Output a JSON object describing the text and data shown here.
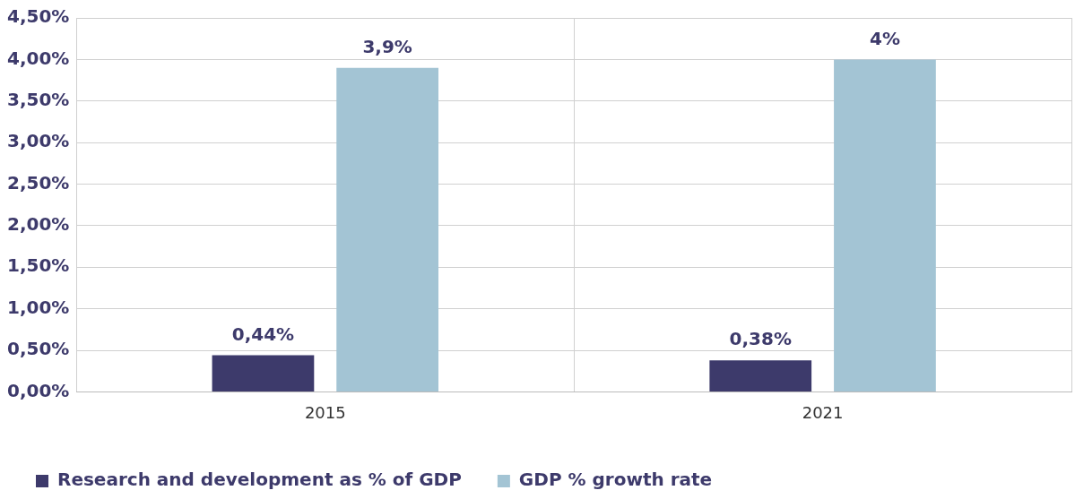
{
  "chart_data": {
    "type": "bar",
    "categories": [
      "2015",
      "2021"
    ],
    "series": [
      {
        "name": "Research and development as % of GDP",
        "color": "#3d3a6b",
        "values": [
          0.44,
          0.38
        ],
        "value_labels": [
          "0,44%",
          "0,38%"
        ]
      },
      {
        "name": "GDP % growth rate",
        "color": "#a3c4d4",
        "values": [
          3.9,
          4
        ],
        "value_labels": [
          "3,9%",
          "4%"
        ]
      }
    ],
    "ylim": [
      0,
      4.5
    ],
    "yticks": [
      {
        "value": 0,
        "label": "0,00%"
      },
      {
        "value": 0.5,
        "label": "0,50%"
      },
      {
        "value": 1,
        "label": "1,00%"
      },
      {
        "value": 1.5,
        "label": "1,50%"
      },
      {
        "value": 2,
        "label": "2,00%"
      },
      {
        "value": 2.5,
        "label": "2,50%"
      },
      {
        "value": 3,
        "label": "3,00%"
      },
      {
        "value": 3.5,
        "label": "3,50%"
      },
      {
        "value": 4,
        "label": "4,00%"
      },
      {
        "value": 4.5,
        "label": "4,50%"
      }
    ],
    "grid": true,
    "legend": "bottom"
  }
}
